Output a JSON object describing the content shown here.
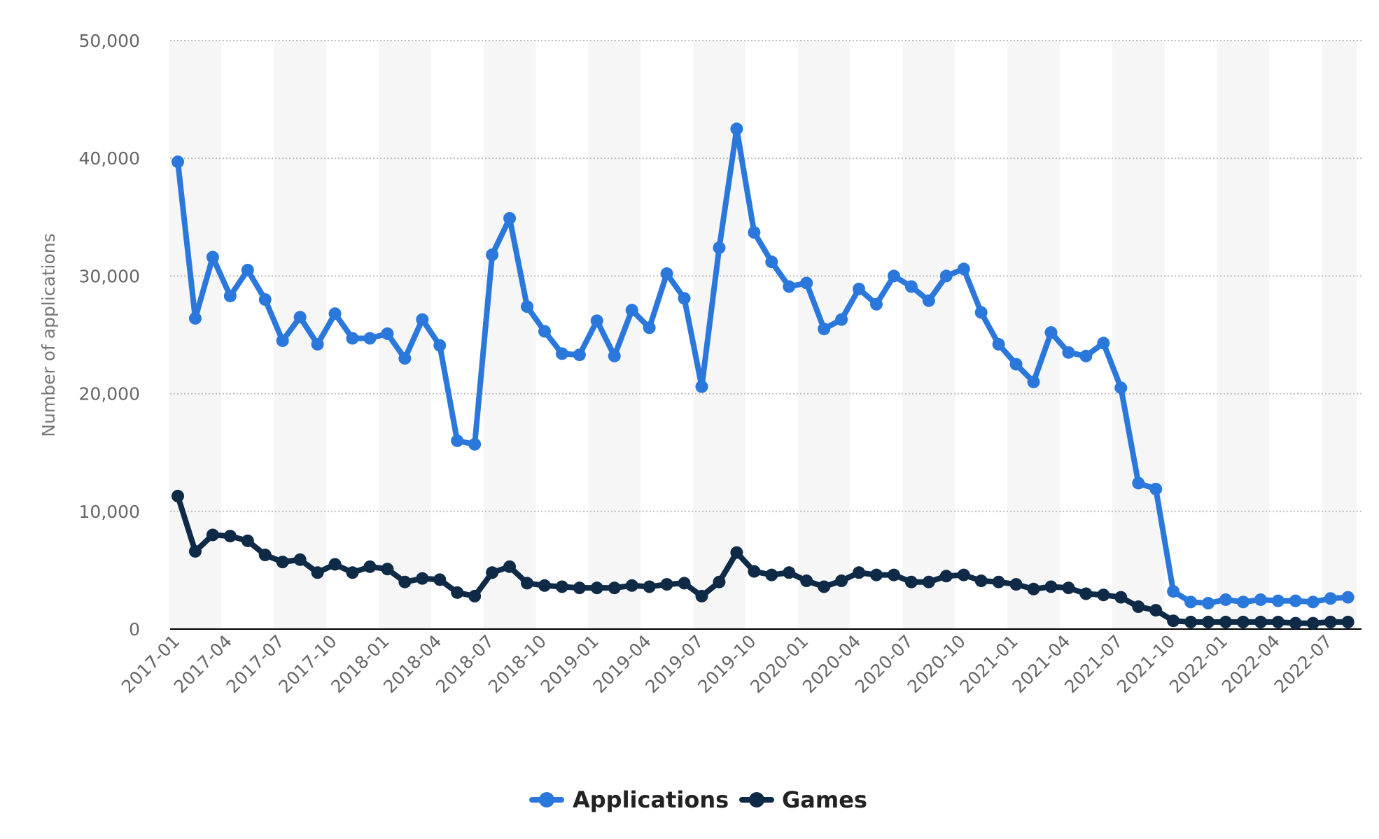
{
  "chart_data": {
    "type": "line",
    "ylabel": "Number of applications",
    "ylim": [
      0,
      50000
    ],
    "yticks": [
      0,
      10000,
      20000,
      30000,
      40000,
      50000
    ],
    "ytick_labels": [
      "0",
      "10,000",
      "20,000",
      "30,000",
      "40,000",
      "50,000"
    ],
    "x_start": "2017-01",
    "x_labels": [
      "2017-01",
      "2017-04",
      "2017-07",
      "2017-10",
      "2018-01",
      "2018-04",
      "2018-07",
      "2018-10",
      "2019-01",
      "2019-04",
      "2019-07",
      "2019-10",
      "2020-01",
      "2020-04",
      "2020-07",
      "2020-10",
      "2021-01",
      "2021-04",
      "2021-07",
      "2021-10",
      "2022-01",
      "2022-04",
      "2022-07"
    ],
    "grid": true,
    "legend_position": "bottom-center",
    "series": [
      {
        "name": "Applications",
        "color": "#2a78dc",
        "values": [
          39700,
          26400,
          31600,
          28300,
          30500,
          28000,
          24500,
          26500,
          24200,
          26800,
          24700,
          24700,
          25100,
          23000,
          26300,
          24100,
          16000,
          15700,
          31800,
          34900,
          27400,
          25300,
          23400,
          23300,
          26200,
          23200,
          27100,
          25600,
          30200,
          28100,
          20600,
          32400,
          42500,
          33700,
          31200,
          29100,
          29400,
          25500,
          26300,
          28900,
          27600,
          30000,
          29100,
          27900,
          30000,
          30600,
          26900,
          24200,
          22500,
          21000,
          25200,
          23500,
          23200,
          24300,
          20500,
          12400,
          11900,
          3200,
          2300,
          2200,
          2500,
          2300,
          2500,
          2400,
          2400,
          2300,
          2600,
          2700
        ]
      },
      {
        "name": "Games",
        "color": "#0e2a47",
        "values": [
          11300,
          6600,
          8000,
          7900,
          7500,
          6300,
          5700,
          5900,
          4800,
          5500,
          4800,
          5300,
          5100,
          4000,
          4300,
          4200,
          3100,
          2800,
          4800,
          5300,
          3900,
          3700,
          3600,
          3500,
          3500,
          3500,
          3700,
          3600,
          3800,
          3900,
          2800,
          4000,
          6500,
          4900,
          4600,
          4800,
          4100,
          3600,
          4100,
          4800,
          4600,
          4600,
          4000,
          4000,
          4500,
          4600,
          4100,
          4000,
          3800,
          3400,
          3600,
          3500,
          3000,
          2900,
          2700,
          1900,
          1600,
          700,
          600,
          600,
          600,
          600,
          600,
          600,
          500,
          500,
          600,
          600
        ]
      }
    ]
  }
}
